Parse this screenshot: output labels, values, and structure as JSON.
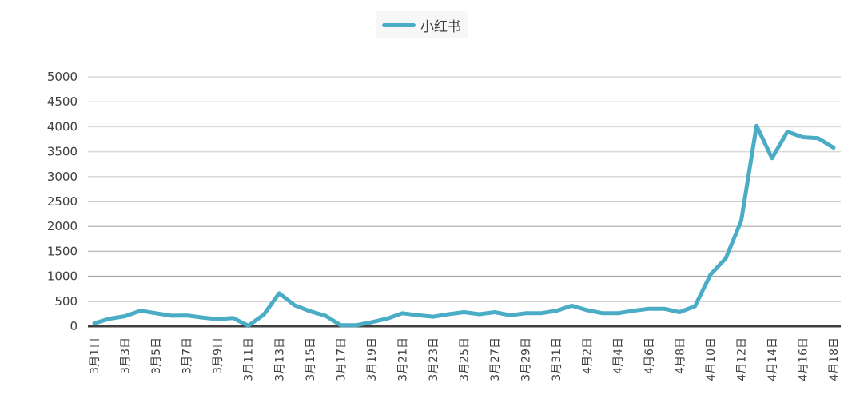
{
  "legend": {
    "label": "小红书",
    "color": "#4bacc6"
  },
  "colors": {
    "line": "#4bacc6",
    "grid": "#d9d9d9",
    "axis": "#404040"
  },
  "chart_data": {
    "type": "line",
    "title": "",
    "xlabel": "",
    "ylabel": "",
    "ylim": [
      0,
      5000
    ],
    "yticks": [
      0,
      500,
      1000,
      1500,
      2000,
      2500,
      3000,
      3500,
      4000,
      4500,
      5000
    ],
    "grid": true,
    "legend_position": "top",
    "categories": [
      "3月1日",
      "3月2日",
      "3月3日",
      "3月4日",
      "3月5日",
      "3月6日",
      "3月7日",
      "3月8日",
      "3月9日",
      "3月10日",
      "3月11日",
      "3月12日",
      "3月13日",
      "3月14日",
      "3月15日",
      "3月16日",
      "3月17日",
      "3月18日",
      "3月19日",
      "3月20日",
      "3月21日",
      "3月22日",
      "3月23日",
      "3月24日",
      "3月25日",
      "3月26日",
      "3月27日",
      "3月28日",
      "3月29日",
      "3月30日",
      "3月31日",
      "4月1日",
      "4月2日",
      "4月3日",
      "4月4日",
      "4月5日",
      "4月6日",
      "4月7日",
      "4月8日",
      "4月9日",
      "4月10日",
      "4月11日",
      "4月12日",
      "4月13日",
      "4月14日",
      "4月15日",
      "4月16日",
      "4月17日",
      "4月18日"
    ],
    "tick_labels_shown": [
      "3月1日",
      "3月3日",
      "3月5日",
      "3月7日",
      "3月9日",
      "3月11日",
      "3月13日",
      "3月15日",
      "3月17日",
      "3月19日",
      "3月21日",
      "3月23日",
      "3月25日",
      "3月27日",
      "3月29日",
      "3月31日",
      "4月2日",
      "4月4日",
      "4月6日",
      "4月8日",
      "4月10日",
      "4月12日",
      "4月14日",
      "4月16日",
      "4月18日"
    ],
    "series": [
      {
        "name": "小红书",
        "values": [
          60,
          150,
          200,
          310,
          260,
          210,
          215,
          175,
          140,
          165,
          10,
          230,
          660,
          420,
          300,
          210,
          20,
          20,
          80,
          150,
          260,
          220,
          190,
          240,
          280,
          240,
          280,
          220,
          260,
          260,
          310,
          410,
          320,
          260,
          260,
          310,
          350,
          350,
          280,
          400,
          1030,
          1360,
          2110,
          4020,
          3370,
          3900,
          3790,
          3770,
          3580
        ]
      }
    ]
  }
}
